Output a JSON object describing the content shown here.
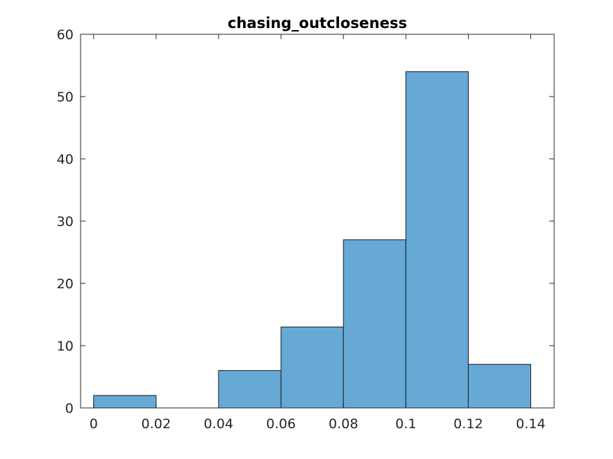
{
  "chart_data": {
    "type": "bar",
    "title": "chasing_outcloseness",
    "xlabel": "",
    "ylabel": "",
    "bin_edges": [
      0,
      0.02,
      0.04,
      0.06,
      0.08,
      0.1,
      0.12,
      0.14
    ],
    "values": [
      2,
      0,
      6,
      13,
      27,
      54,
      7
    ],
    "xlim": [
      -0.0042,
      0.1475
    ],
    "ylim": [
      0,
      60
    ],
    "xticks": [
      0,
      0.02,
      0.04,
      0.06,
      0.08,
      0.1,
      0.12,
      0.14
    ],
    "xtick_labels": [
      "0",
      "0.02",
      "0.04",
      "0.06",
      "0.08",
      "0.1",
      "0.12",
      "0.14"
    ],
    "yticks": [
      0,
      10,
      20,
      30,
      40,
      50,
      60
    ],
    "ytick_labels": [
      "0",
      "10",
      "20",
      "30",
      "40",
      "50",
      "60"
    ],
    "grid": false,
    "bar_color": "#66a9d7",
    "edge_color": "#1a1a1a",
    "axis_color": "#262626"
  }
}
